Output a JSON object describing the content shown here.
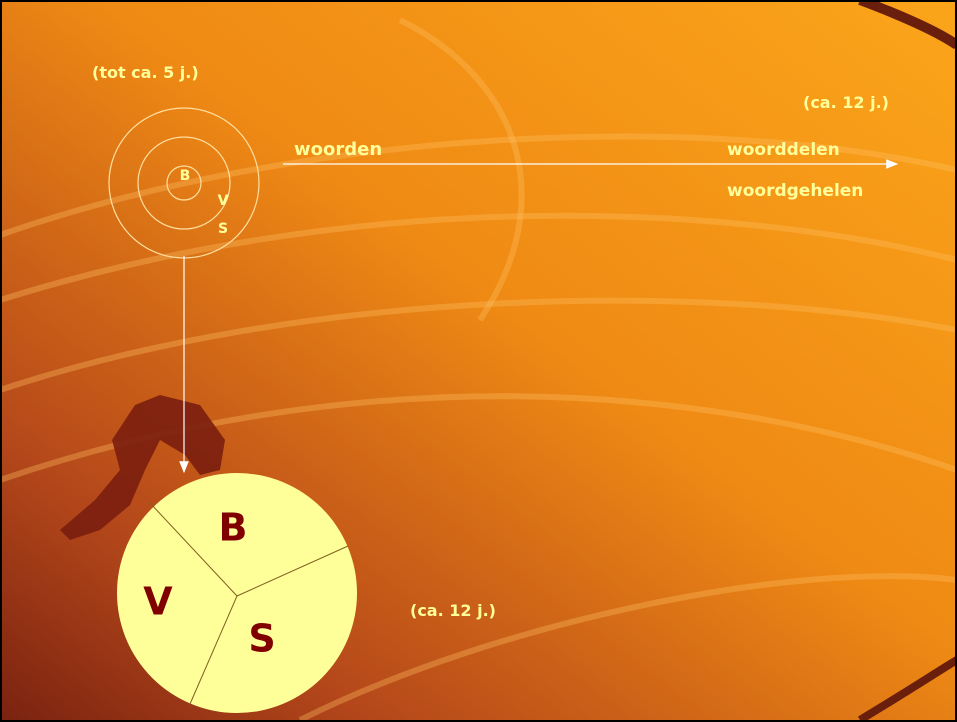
{
  "top_left": {
    "age": "(tot ca. 5 j.)",
    "circles": [
      "B",
      "V",
      "S"
    ]
  },
  "arrow": {
    "start_label": "woorden",
    "age": "(ca. 12 j.)",
    "end_labels": [
      "woorddelen",
      "woordgehelen"
    ]
  },
  "pie": {
    "segments": [
      "B",
      "V",
      "S"
    ],
    "age": "(ca. 12 j.)"
  }
}
